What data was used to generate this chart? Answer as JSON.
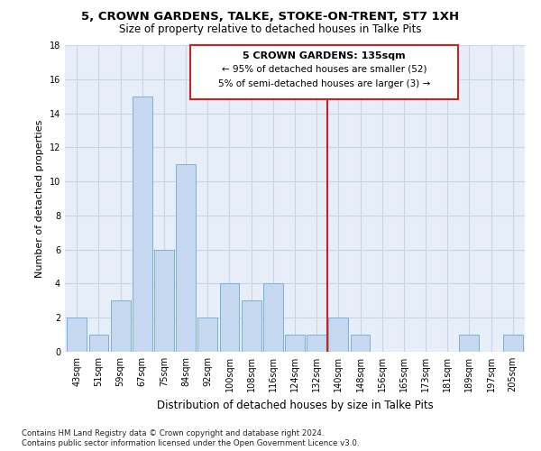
{
  "title1": "5, CROWN GARDENS, TALKE, STOKE-ON-TRENT, ST7 1XH",
  "title2": "Size of property relative to detached houses in Talke Pits",
  "xlabel": "Distribution of detached houses by size in Talke Pits",
  "ylabel": "Number of detached properties",
  "categories": [
    "43sqm",
    "51sqm",
    "59sqm",
    "67sqm",
    "75sqm",
    "84sqm",
    "92sqm",
    "100sqm",
    "108sqm",
    "116sqm",
    "124sqm",
    "132sqm",
    "140sqm",
    "148sqm",
    "156sqm",
    "165sqm",
    "173sqm",
    "181sqm",
    "189sqm",
    "197sqm",
    "205sqm"
  ],
  "values": [
    2,
    1,
    3,
    15,
    6,
    11,
    2,
    4,
    3,
    4,
    1,
    1,
    2,
    1,
    0,
    0,
    0,
    0,
    1,
    0,
    1
  ],
  "bar_color": "#c5d8f0",
  "bar_edge_color": "#7ab0d8",
  "grid_color": "#c8d4e8",
  "background_color": "#e8eef8",
  "vline_color": "#cc2222",
  "annotation_title": "5 CROWN GARDENS: 135sqm",
  "annotation_line1": "← 95% of detached houses are smaller (52)",
  "annotation_line2": "5% of semi-detached houses are larger (3) →",
  "annotation_box_color": "#cc2222",
  "footnote1": "Contains HM Land Registry data © Crown copyright and database right 2024.",
  "footnote2": "Contains public sector information licensed under the Open Government Licence v3.0.",
  "ylim": [
    0,
    18
  ],
  "yticks": [
    0,
    2,
    4,
    6,
    8,
    10,
    12,
    14,
    16,
    18
  ]
}
